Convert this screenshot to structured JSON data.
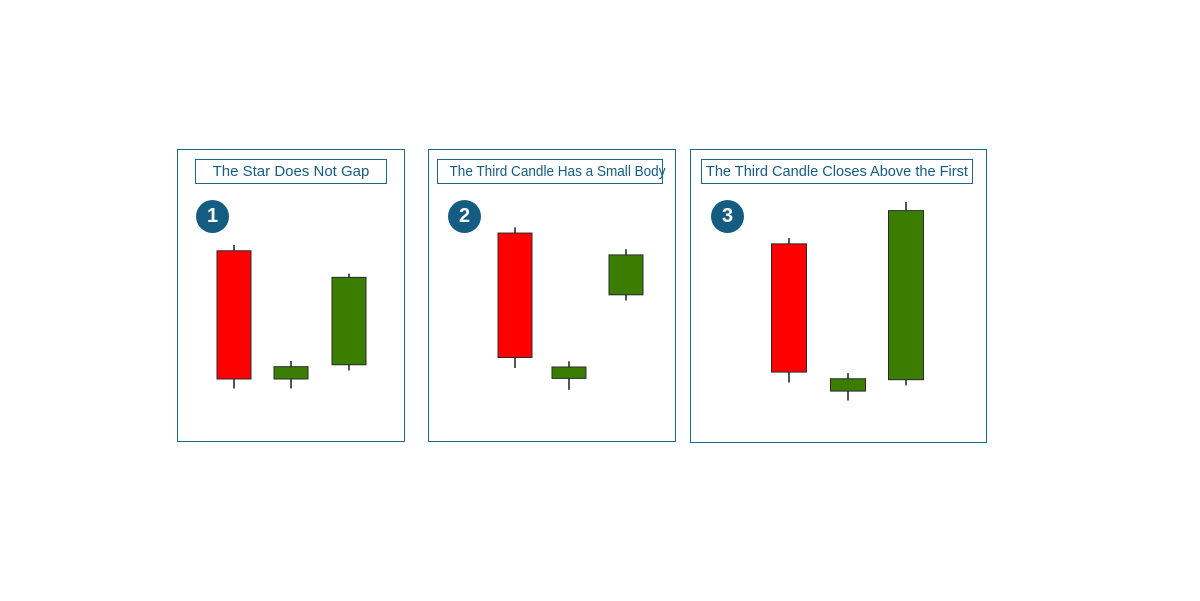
{
  "colors": {
    "frame": "#1b6a8c",
    "title_text": "#155c82",
    "badge_fill": "#155c82",
    "bearish": "#ff0000",
    "bullish": "#3a7d00",
    "wick": "#555555"
  },
  "panels": [
    {
      "number": "1",
      "title": "The Star Does Not Gap",
      "chart_data": {
        "type": "candlestick",
        "candles": [
          {
            "open": 7.75,
            "close": 1.0,
            "high": 8.05,
            "low": 0.5,
            "direction": "bearish"
          },
          {
            "open": 1.0,
            "close": 1.65,
            "high": 1.95,
            "low": 0.5,
            "direction": "bullish"
          },
          {
            "open": 1.75,
            "close": 6.35,
            "high": 6.55,
            "low": 1.45,
            "direction": "bullish"
          }
        ]
      }
    },
    {
      "number": "2",
      "title": "The Third Candle Has a Small Body",
      "chart_data": {
        "type": "candlestick",
        "candles": [
          {
            "open": 8.05,
            "close": 1.5,
            "high": 8.35,
            "low": 0.95,
            "direction": "bearish"
          },
          {
            "open": 0.4,
            "close": 1.0,
            "high": 1.3,
            "low": -0.2,
            "direction": "bullish"
          },
          {
            "open": 4.8,
            "close": 6.9,
            "high": 7.2,
            "low": 4.5,
            "direction": "bullish"
          }
        ]
      }
    },
    {
      "number": "3",
      "title": "The Third Candle Closes Above the First",
      "chart_data": {
        "type": "candlestick",
        "candles": [
          {
            "open": 7.85,
            "close": 1.1,
            "high": 8.15,
            "low": 0.55,
            "direction": "bearish"
          },
          {
            "open": 0.1,
            "close": 0.75,
            "high": 1.05,
            "low": -0.4,
            "direction": "bullish"
          },
          {
            "open": 0.7,
            "close": 9.6,
            "high": 10.05,
            "low": 0.4,
            "direction": "bullish"
          }
        ]
      }
    }
  ]
}
